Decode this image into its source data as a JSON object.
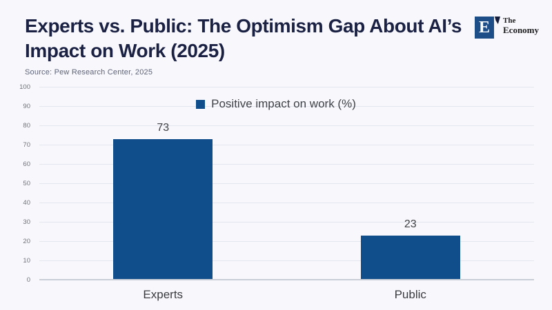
{
  "header": {
    "title_line1": "Experts vs. Public: The Optimism Gap About AI’s",
    "title_line2": "Impact on Work (2025)",
    "source": "Source: Pew Research Center, 2025",
    "logo": {
      "mark_letter": "E",
      "name_line1": "The",
      "name_line2": "Economy"
    }
  },
  "legend": {
    "label": "Positive impact on work (%)"
  },
  "chart_data": {
    "type": "bar",
    "title": "Experts vs. Public: The Optimism Gap About AI’s Impact on Work (2025)",
    "categories": [
      "Experts",
      "Public"
    ],
    "values": [
      73,
      23
    ],
    "series_name": "Positive impact on work (%)",
    "xlabel": "",
    "ylabel": "",
    "ylim": [
      0,
      100
    ],
    "ytick_step": 10,
    "grid": true,
    "legend_position": "top-center",
    "bar_color": "#0f4e8b",
    "source": "Source: Pew Research Center, 2025"
  },
  "colors": {
    "background": "#f8f8fc",
    "bar": "#0f4e8b",
    "title": "#1a2143",
    "gridline": "#e3e6ef",
    "axis_line": "#c9cdd6",
    "tick_label": "#70727b",
    "logo_square": "#1d4e88"
  }
}
